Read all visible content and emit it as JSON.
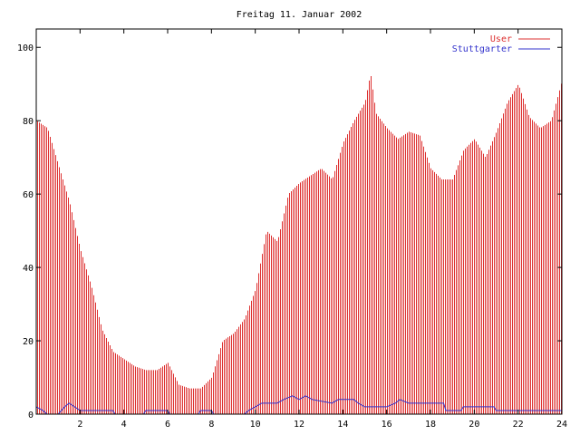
{
  "chart_data": {
    "type": "bar",
    "title": "Freitag 11. Januar 2002",
    "xlabel": "",
    "ylabel": "",
    "xlim": [
      0,
      24
    ],
    "ylim": [
      0,
      105
    ],
    "x_ticks": [
      2,
      4,
      6,
      8,
      10,
      12,
      14,
      16,
      18,
      20,
      22,
      24
    ],
    "x_tick_labels": [
      "2",
      "4",
      "6",
      "8",
      "10",
      "12",
      "14",
      "16",
      "18",
      "20",
      "22",
      "24"
    ],
    "y_ticks": [
      0,
      20,
      40,
      60,
      80,
      100
    ],
    "y_tick_labels": [
      "0",
      "20",
      "40",
      "60",
      "80",
      "100"
    ],
    "legend_position": "top-right",
    "grid": false,
    "series": [
      {
        "name": "User",
        "color": "#dd3030",
        "style": "impulses",
        "x": [
          0.0,
          0.5,
          1.0,
          1.5,
          2.0,
          2.5,
          3.0,
          3.5,
          4.0,
          4.5,
          5.0,
          5.5,
          6.0,
          6.5,
          7.0,
          7.5,
          8.0,
          8.5,
          9.0,
          9.5,
          10.0,
          10.5,
          11.0,
          11.5,
          12.0,
          12.5,
          13.0,
          13.5,
          14.0,
          14.5,
          15.0,
          15.25,
          15.5,
          16.0,
          16.5,
          17.0,
          17.5,
          18.0,
          18.5,
          19.0,
          19.5,
          20.0,
          20.5,
          21.0,
          21.5,
          22.0,
          22.5,
          23.0,
          23.5,
          24.0
        ],
        "values": [
          80,
          78,
          68,
          58,
          45,
          35,
          23,
          17,
          15,
          13,
          12,
          12,
          14,
          8,
          7,
          7,
          10,
          20,
          22,
          26,
          34,
          50,
          47,
          60,
          63,
          65,
          67,
          64,
          74,
          80,
          85,
          93,
          82,
          78,
          75,
          77,
          76,
          67,
          64,
          64,
          72,
          75,
          70,
          77,
          85,
          90,
          81,
          78,
          80,
          91
        ]
      },
      {
        "name": "Stuttgarter",
        "color": "#3333cc",
        "style": "line",
        "x": [
          0.0,
          0.3,
          0.5,
          1.0,
          1.3,
          1.5,
          2.0,
          3.5,
          3.6,
          4.9,
          5.0,
          6.0,
          6.1,
          7.4,
          7.5,
          8.0,
          8.1,
          9.5,
          9.7,
          10.0,
          10.3,
          11.0,
          11.3,
          11.7,
          12.0,
          12.3,
          12.6,
          13.5,
          13.8,
          14.5,
          14.7,
          15.0,
          16.0,
          16.4,
          16.6,
          17.0,
          18.0,
          18.6,
          18.7,
          19.4,
          19.5,
          20.9,
          21.0,
          24.0
        ],
        "values": [
          2,
          1,
          0,
          0,
          2,
          3,
          1,
          1,
          0,
          0,
          1,
          1,
          0,
          0,
          1,
          1,
          0,
          0,
          1,
          2,
          3,
          3,
          4,
          5,
          4,
          5,
          4,
          3,
          4,
          4,
          3,
          2,
          2,
          3,
          4,
          3,
          3,
          3,
          1,
          1,
          2,
          2,
          1,
          1
        ]
      }
    ]
  }
}
